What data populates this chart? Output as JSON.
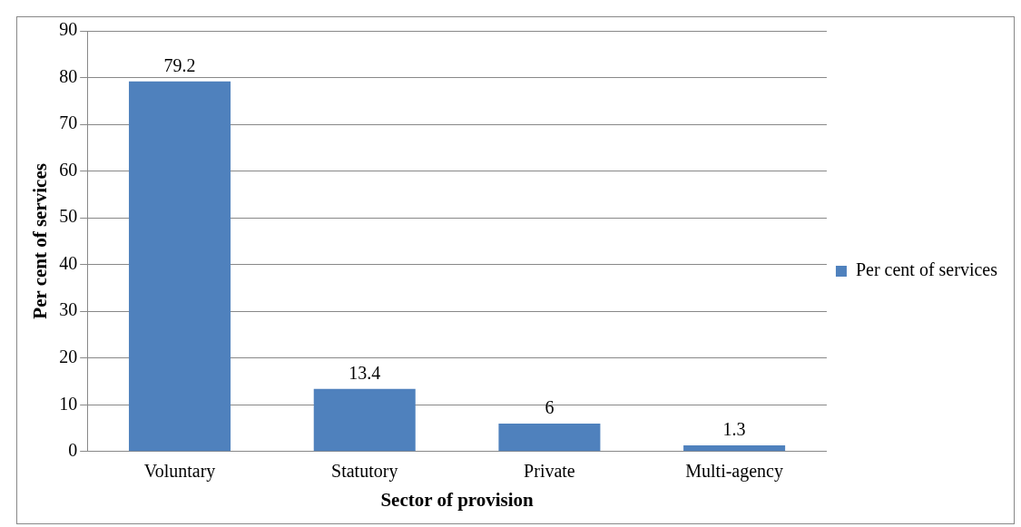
{
  "chart_data": {
    "type": "bar",
    "xlabel": "Sector of provision",
    "ylabel": "Per cent of services",
    "categories": [
      "Voluntary",
      "Statutory",
      "Private",
      "Multi-agency"
    ],
    "series": [
      {
        "name": "Per cent of services",
        "color": "#4f81bd",
        "values": [
          79.2,
          13.4,
          6,
          1.3
        ]
      }
    ],
    "ylim": [
      0,
      90
    ],
    "yticks": [
      0,
      10,
      20,
      30,
      40,
      50,
      60,
      70,
      80,
      90
    ],
    "grid": "y",
    "legend": "right",
    "data_labels": true
  }
}
